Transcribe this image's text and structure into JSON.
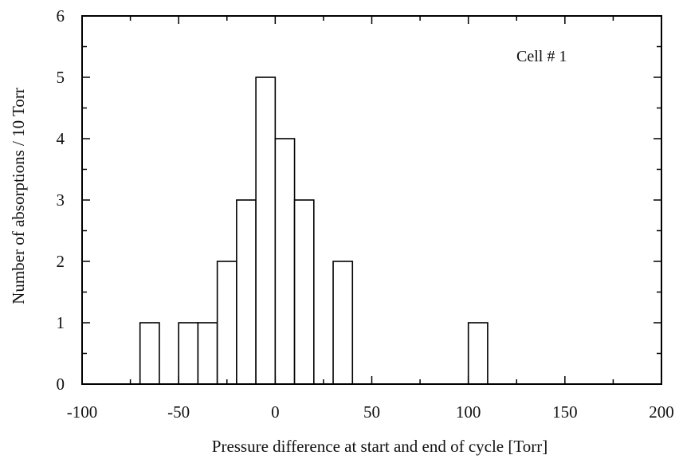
{
  "chart_data": {
    "type": "bar",
    "title": "",
    "annotation": "Cell # 1",
    "xlabel": "Pressure difference at start and end of cycle [Torr]",
    "ylabel": "Number of absorptions / 10 Torr",
    "xlim": [
      -100,
      200
    ],
    "ylim": [
      0,
      6
    ],
    "xticks": [
      -100,
      -50,
      0,
      50,
      100,
      150,
      200
    ],
    "xtick_labels": [
      "-100",
      "-50",
      "0",
      "50",
      "100",
      "150",
      "200"
    ],
    "yticks": [
      0,
      1,
      2,
      3,
      4,
      5,
      6
    ],
    "ytick_labels": [
      "0",
      "1",
      "2",
      "3",
      "4",
      "5",
      "6"
    ],
    "grid": false,
    "legend": "none",
    "bar_color": "#ffffff",
    "edge_color": "#000000",
    "bins": [
      {
        "start": -70,
        "end": -60,
        "value": 1
      },
      {
        "start": -50,
        "end": -40,
        "value": 1
      },
      {
        "start": -40,
        "end": -30,
        "value": 1
      },
      {
        "start": -30,
        "end": -20,
        "value": 2
      },
      {
        "start": -20,
        "end": -10,
        "value": 3
      },
      {
        "start": -10,
        "end": 0,
        "value": 5
      },
      {
        "start": 0,
        "end": 10,
        "value": 4
      },
      {
        "start": 10,
        "end": 20,
        "value": 3
      },
      {
        "start": 30,
        "end": 40,
        "value": 2
      },
      {
        "start": 100,
        "end": 110,
        "value": 1
      }
    ]
  }
}
